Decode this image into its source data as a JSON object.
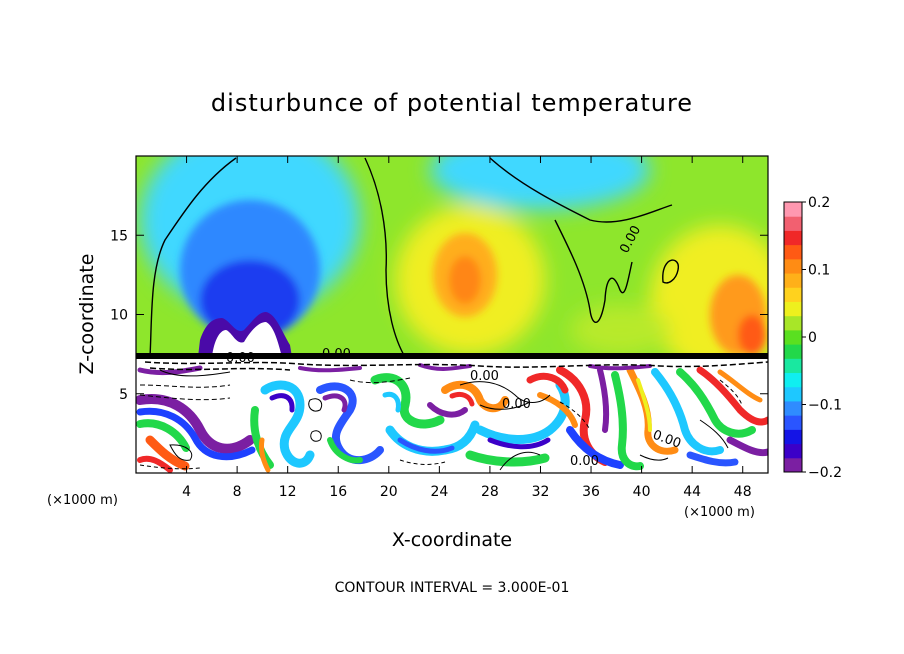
{
  "chart_data": {
    "type": "heatmap",
    "title": "disturbunce of potential temperature",
    "xlabel": "X-coordinate",
    "ylabel": "Z-coordinate",
    "x_unit": "(×1000 m)",
    "y_unit": "(×1000 m)",
    "xlim": [
      0,
      50
    ],
    "ylim": [
      0,
      20
    ],
    "x_ticks": [
      4,
      8,
      12,
      16,
      20,
      24,
      28,
      32,
      36,
      40,
      44,
      48
    ],
    "y_ticks": [
      5,
      10,
      15
    ],
    "colorbar": {
      "range": [
        -0.2,
        0.2
      ],
      "ticks": [
        {
          "value": 0.2,
          "label": "0.2"
        },
        {
          "value": 0.1,
          "label": "0.1"
        },
        {
          "value": 0.0,
          "label": "0"
        },
        {
          "value": -0.1,
          "label": "−0.1"
        },
        {
          "value": -0.2,
          "label": "−0.2"
        }
      ],
      "colors": [
        "#7b1fa2",
        "#3b00c8",
        "#1414e6",
        "#2a55ff",
        "#2f8cff",
        "#1ec8ff",
        "#10eef0",
        "#19e8a0",
        "#22d84a",
        "#5ae020",
        "#a8e628",
        "#eef01e",
        "#ffd21e",
        "#ffb019",
        "#ff8c14",
        "#ff5a14",
        "#f02828",
        "#f26070",
        "#ff98b0"
      ]
    },
    "contour_labels": [
      "0.00",
      "0.00",
      "0.00",
      "0.00",
      "0.00",
      "0.00",
      "0.00"
    ],
    "contour_interval_text": "CONTOUR INTERVAL = 3.000E-01",
    "features": [
      {
        "kind": "negative-anomaly",
        "x": 10,
        "z": 11.5,
        "value": -0.17
      },
      {
        "kind": "strong-negative-core",
        "x": 9.5,
        "z": 9,
        "value": -0.2
      },
      {
        "kind": "positive-anomaly",
        "x": 27.5,
        "z": 12.5,
        "value": 0.12
      },
      {
        "kind": "positive-anomaly",
        "x": 48,
        "z": 9.5,
        "value": 0.15
      },
      {
        "kind": "negative-anomaly",
        "x": 32,
        "z": 19.5,
        "value": -0.08
      },
      {
        "kind": "inversion-layer",
        "z": 7.2
      }
    ]
  }
}
